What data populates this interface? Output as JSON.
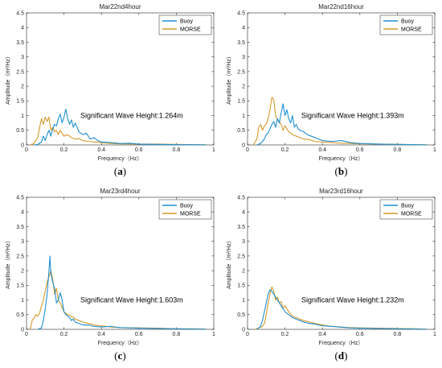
{
  "colors": {
    "buoy": "#1f8fd1",
    "morse": "#d49a2a",
    "axis": "#262626"
  },
  "chart_data": [
    {
      "type": "line",
      "panel_label": "(a)",
      "title": "Mar22nd4hour",
      "xlabel": "Frequency（Hz）",
      "ylabel": "Amplitude（m²/Hz）",
      "xlim": [
        0,
        1
      ],
      "ylim": [
        0,
        4.5
      ],
      "xticks": [
        "0",
        "0.2",
        "0.4",
        "0.6",
        "0.8",
        "1"
      ],
      "yticks": [
        "0",
        "0.5",
        "1",
        "1.5",
        "2",
        "2.5",
        "3",
        "3.5",
        "4",
        "4.5"
      ],
      "annotation": "Significant Wave Height:1.264m",
      "legend": [
        "Buoy",
        "MORSE"
      ],
      "legend_position": "top-right",
      "series": [
        {
          "name": "Buoy",
          "x": [
            0.04,
            0.06,
            0.08,
            0.09,
            0.1,
            0.11,
            0.12,
            0.13,
            0.14,
            0.15,
            0.16,
            0.17,
            0.18,
            0.19,
            0.2,
            0.21,
            0.22,
            0.23,
            0.24,
            0.25,
            0.26,
            0.28,
            0.3,
            0.32,
            0.34,
            0.36,
            0.38,
            0.4,
            0.45,
            0.5,
            0.55,
            0.6,
            0.7,
            0.8,
            0.9,
            0.96
          ],
          "y": [
            0,
            0.02,
            0.1,
            0.3,
            0.15,
            0.35,
            0.5,
            0.3,
            0.55,
            0.7,
            0.65,
            0.9,
            1.05,
            0.75,
            0.95,
            1.22,
            0.9,
            0.7,
            0.85,
            0.6,
            0.75,
            0.45,
            0.35,
            0.4,
            0.2,
            0.25,
            0.15,
            0.1,
            0.08,
            0.05,
            0.06,
            0.03,
            0.02,
            0.01,
            0.01,
            0
          ]
        },
        {
          "name": "MORSE",
          "x": [
            0.02,
            0.04,
            0.06,
            0.07,
            0.08,
            0.09,
            0.1,
            0.11,
            0.12,
            0.13,
            0.14,
            0.15,
            0.16,
            0.17,
            0.18,
            0.2,
            0.22,
            0.24,
            0.26,
            0.28,
            0.3,
            0.33,
            0.36,
            0.4,
            0.45,
            0.5,
            0.6,
            0.7,
            0.8,
            0.9,
            0.96
          ],
          "y": [
            0,
            0.05,
            0.25,
            0.6,
            0.9,
            0.7,
            0.95,
            0.8,
            0.95,
            0.5,
            0.6,
            0.45,
            0.5,
            0.35,
            0.5,
            0.3,
            0.35,
            0.25,
            0.2,
            0.22,
            0.15,
            0.12,
            0.1,
            0.08,
            0.05,
            0.04,
            0.03,
            0.03,
            0.02,
            0.01,
            0.01
          ]
        }
      ]
    },
    {
      "type": "line",
      "panel_label": "(b)",
      "title": "Mar22nd16hour",
      "xlabel": "Frequency（Hz）",
      "ylabel": "Amplitude（m²/Hz）",
      "xlim": [
        0,
        1
      ],
      "ylim": [
        0,
        4.5
      ],
      "xticks": [
        "0",
        "0.2",
        "0.4",
        "0.6",
        "0.8",
        "1"
      ],
      "yticks": [
        "0",
        "0.5",
        "1",
        "1.5",
        "2",
        "2.5",
        "3",
        "3.5",
        "4",
        "4.5"
      ],
      "annotation": "Significant Wave Height:1.393m",
      "legend": [
        "Buoy",
        "MORSE"
      ],
      "legend_position": "top-right",
      "series": [
        {
          "name": "Buoy",
          "x": [
            0.05,
            0.07,
            0.09,
            0.1,
            0.11,
            0.12,
            0.13,
            0.14,
            0.15,
            0.16,
            0.17,
            0.18,
            0.19,
            0.2,
            0.21,
            0.22,
            0.23,
            0.24,
            0.25,
            0.26,
            0.27,
            0.28,
            0.3,
            0.32,
            0.34,
            0.36,
            0.38,
            0.4,
            0.45,
            0.5,
            0.55,
            0.6,
            0.7,
            0.8,
            0.9,
            0.96
          ],
          "y": [
            0,
            0.05,
            0.2,
            0.35,
            0.4,
            0.55,
            0.7,
            0.8,
            0.6,
            0.9,
            0.75,
            1.1,
            1.4,
            1.0,
            1.2,
            0.9,
            0.75,
            1.0,
            0.6,
            0.7,
            0.55,
            0.5,
            0.45,
            0.35,
            0.3,
            0.25,
            0.2,
            0.15,
            0.12,
            0.15,
            0.08,
            0.05,
            0.03,
            0.02,
            0.01,
            0
          ]
        },
        {
          "name": "MORSE",
          "x": [
            0.03,
            0.05,
            0.06,
            0.07,
            0.08,
            0.09,
            0.1,
            0.11,
            0.12,
            0.13,
            0.14,
            0.15,
            0.16,
            0.17,
            0.18,
            0.19,
            0.2,
            0.22,
            0.24,
            0.26,
            0.28,
            0.3,
            0.33,
            0.36,
            0.4,
            0.45,
            0.5,
            0.6,
            0.7,
            0.8,
            0.9,
            0.96
          ],
          "y": [
            0,
            0.2,
            0.6,
            0.7,
            0.5,
            0.65,
            0.7,
            0.9,
            1.2,
            1.62,
            1.55,
            1.0,
            0.85,
            0.8,
            0.7,
            0.5,
            0.65,
            0.45,
            0.35,
            0.3,
            0.25,
            0.2,
            0.18,
            0.12,
            0.1,
            0.08,
            0.06,
            0.04,
            0.03,
            0.02,
            0.01,
            0.01
          ]
        }
      ]
    },
    {
      "type": "line",
      "panel_label": "(c)",
      "title": "Mar23rd4hour",
      "xlabel": "Frequency（Hz）",
      "ylabel": "Amplitude（m²/Hz）",
      "xlim": [
        0,
        1
      ],
      "ylim": [
        0,
        4.5
      ],
      "xticks": [
        "0",
        "0.2",
        "0.4",
        "0.6",
        "0.8",
        "1"
      ],
      "yticks": [
        "0",
        "0.5",
        "1",
        "1.5",
        "2",
        "2.5",
        "3",
        "3.5",
        "4",
        "4.5"
      ],
      "annotation": "Significant Wave Height:1.603m",
      "legend": [
        "Buoy",
        "MORSE"
      ],
      "legend_position": "top-right",
      "series": [
        {
          "name": "Buoy",
          "x": [
            0.06,
            0.08,
            0.09,
            0.1,
            0.11,
            0.12,
            0.125,
            0.13,
            0.14,
            0.15,
            0.16,
            0.17,
            0.18,
            0.19,
            0.2,
            0.21,
            0.22,
            0.23,
            0.24,
            0.25,
            0.26,
            0.28,
            0.3,
            0.33,
            0.36,
            0.4,
            0.45,
            0.5,
            0.55,
            0.6,
            0.7,
            0.8,
            0.9,
            0.96
          ],
          "y": [
            0,
            0.05,
            0.3,
            0.7,
            1.2,
            2.0,
            2.5,
            1.9,
            1.6,
            1.4,
            0.9,
            1.0,
            1.25,
            1.0,
            0.6,
            0.5,
            0.45,
            0.4,
            0.3,
            0.35,
            0.25,
            0.2,
            0.15,
            0.15,
            0.1,
            0.08,
            0.1,
            0.06,
            0.05,
            0.04,
            0.03,
            0.02,
            0.01,
            0
          ]
        },
        {
          "name": "MORSE",
          "x": [
            0.02,
            0.03,
            0.04,
            0.05,
            0.06,
            0.07,
            0.08,
            0.09,
            0.1,
            0.11,
            0.12,
            0.13,
            0.14,
            0.15,
            0.16,
            0.17,
            0.18,
            0.2,
            0.22,
            0.24,
            0.26,
            0.28,
            0.3,
            0.33,
            0.36,
            0.4,
            0.45,
            0.5,
            0.6,
            0.7,
            0.8,
            0.9,
            0.96
          ],
          "y": [
            0,
            0.3,
            0.4,
            0.5,
            0.45,
            0.55,
            0.8,
            1.0,
            1.3,
            1.6,
            1.8,
            2.0,
            1.7,
            1.2,
            1.4,
            1.0,
            0.9,
            0.6,
            0.5,
            0.45,
            0.35,
            0.3,
            0.25,
            0.2,
            0.15,
            0.12,
            0.08,
            0.06,
            0.05,
            0.04,
            0.02,
            0.02,
            0.01
          ]
        }
      ]
    },
    {
      "type": "line",
      "panel_label": "(d)",
      "title": "Mar23rd16hour",
      "xlabel": "Frequency（Hz）",
      "ylabel": "Amplitude（m²/Hz）",
      "xlim": [
        0,
        1
      ],
      "ylim": [
        0,
        4.5
      ],
      "xticks": [
        "0",
        "0.2",
        "0.4",
        "0.6",
        "0.8",
        "1"
      ],
      "yticks": [
        "0",
        "0.5",
        "1",
        "1.5",
        "2",
        "2.5",
        "3",
        "3.5",
        "4",
        "4.5"
      ],
      "annotation": "Significant Wave Height:1.232m",
      "legend": [
        "Buoy",
        "MORSE"
      ],
      "legend_position": "top-right",
      "series": [
        {
          "name": "Buoy",
          "x": [
            0.05,
            0.07,
            0.08,
            0.09,
            0.1,
            0.11,
            0.12,
            0.13,
            0.14,
            0.15,
            0.16,
            0.17,
            0.18,
            0.19,
            0.2,
            0.22,
            0.24,
            0.26,
            0.28,
            0.3,
            0.33,
            0.36,
            0.4,
            0.45,
            0.5,
            0.55,
            0.6,
            0.7,
            0.8,
            0.9,
            0.96
          ],
          "y": [
            0,
            0.1,
            0.3,
            0.6,
            0.9,
            1.2,
            1.35,
            1.3,
            1.2,
            1.1,
            1.0,
            0.9,
            0.8,
            0.7,
            0.6,
            0.5,
            0.4,
            0.35,
            0.3,
            0.25,
            0.2,
            0.18,
            0.12,
            0.1,
            0.07,
            0.05,
            0.04,
            0.03,
            0.02,
            0.01,
            0
          ]
        },
        {
          "name": "MORSE",
          "x": [
            0.04,
            0.06,
            0.08,
            0.09,
            0.1,
            0.11,
            0.12,
            0.13,
            0.14,
            0.15,
            0.16,
            0.17,
            0.18,
            0.19,
            0.2,
            0.22,
            0.24,
            0.26,
            0.28,
            0.3,
            0.33,
            0.36,
            0.4,
            0.45,
            0.5,
            0.55,
            0.6,
            0.7,
            0.8,
            0.9,
            0.96
          ],
          "y": [
            0,
            0.05,
            0.1,
            0.2,
            0.5,
            0.9,
            1.2,
            1.45,
            1.3,
            1.0,
            1.1,
            0.9,
            0.95,
            0.7,
            0.8,
            0.6,
            0.45,
            0.4,
            0.35,
            0.3,
            0.25,
            0.2,
            0.15,
            0.1,
            0.08,
            0.06,
            0.05,
            0.04,
            0.03,
            0.02,
            0.01
          ]
        }
      ]
    }
  ]
}
